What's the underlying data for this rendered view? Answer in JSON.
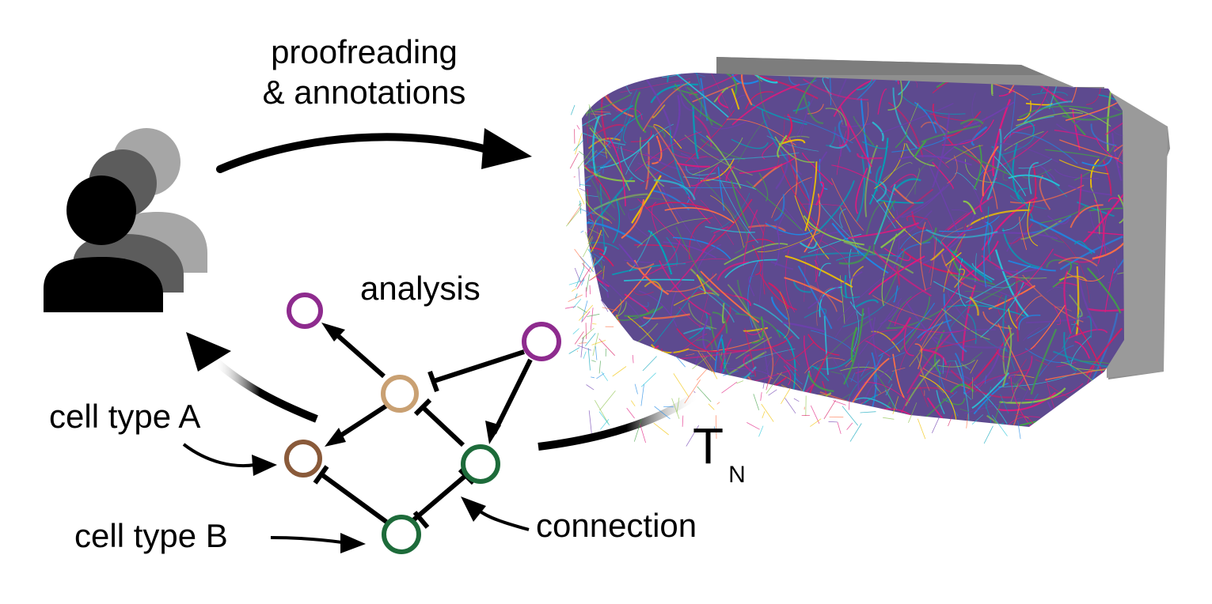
{
  "labels": {
    "title_line1": "proofreading",
    "title_line2": "& annotations",
    "analysis": "analysis",
    "cell_type_a": "cell type A",
    "cell_type_b": "cell type B",
    "connection": "connection",
    "time_main": "T",
    "time_sub": "N"
  },
  "colors": {
    "ink": "#000000",
    "purple_cell": "#8e2b8e",
    "tan_cell": "#c9a072",
    "brown_cell": "#8a5a3a",
    "green_cell": "#1d6b3a",
    "volume_gray": "#8f8f8f",
    "neuron_palette": [
      "#00a2b8",
      "#e0197d",
      "#6f3fb0",
      "#8bc34a",
      "#f2c300",
      "#1e88e5",
      "#43a047",
      "#d81b60",
      "#26c6da",
      "#ff7043"
    ]
  }
}
